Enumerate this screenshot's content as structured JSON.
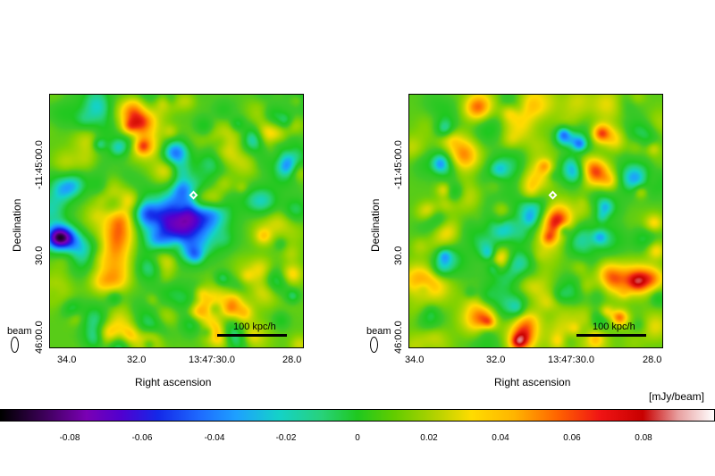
{
  "left_panel": {
    "y_label": "Declination",
    "y_ticks": [
      "-11:45:00.0",
      "30.0",
      "46:00.0"
    ],
    "x_label": "Right ascension",
    "x_ticks": [
      "34.0",
      "32.0",
      "13:47:30.0",
      "28.0"
    ],
    "scale_bar": "100 kpc/h",
    "beam_label": "beam"
  },
  "right_panel": {
    "y_label": "Declination",
    "y_ticks": [
      "-11:45:00.0",
      "30.0",
      "46:00.0"
    ],
    "x_label": "Right ascension",
    "x_ticks": [
      "34.0",
      "32.0",
      "13:47:30.0",
      "28.0"
    ],
    "scale_bar": "100 kpc/h",
    "beam_label": "beam"
  },
  "colorbar": {
    "unit": "[mJy/beam]",
    "ticks": [
      "-0.08",
      "-0.06",
      "-0.04",
      "-0.02",
      "0",
      "0.02",
      "0.04",
      "0.06",
      "0.08"
    ]
  }
}
